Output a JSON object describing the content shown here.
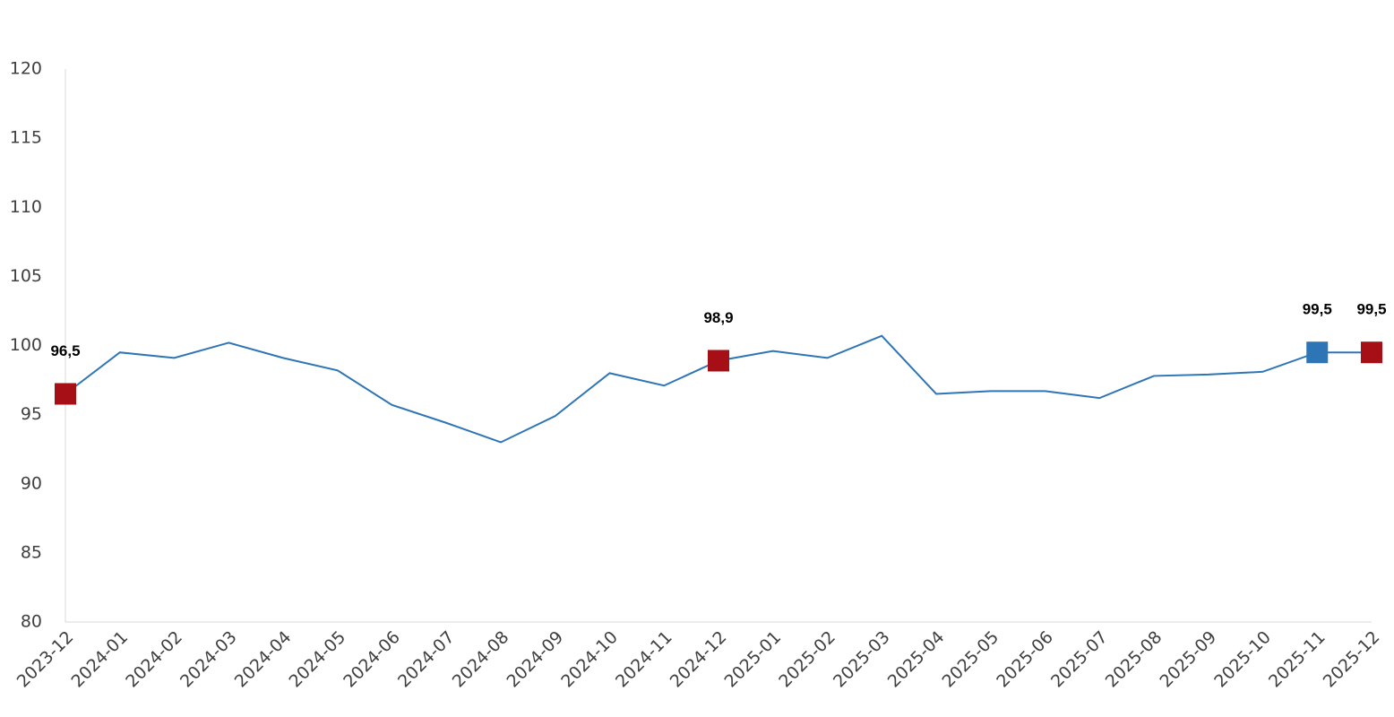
{
  "chart_data": {
    "type": "line",
    "categories": [
      "2023-12",
      "2024-01",
      "2024-02",
      "2024-03",
      "2024-04",
      "2024-05",
      "2024-06",
      "2024-07",
      "2024-08",
      "2024-09",
      "2024-10",
      "2024-11",
      "2024-12",
      "2025-01",
      "2025-02",
      "2025-03",
      "2025-04",
      "2025-05",
      "2025-06",
      "2025-07",
      "2025-08",
      "2025-09",
      "2025-10",
      "2025-11",
      "2025-12"
    ],
    "values": [
      96.5,
      99.5,
      99.1,
      100.2,
      99.1,
      98.2,
      95.7,
      94.4,
      93.0,
      94.9,
      98.0,
      97.1,
      98.9,
      99.6,
      99.1,
      100.7,
      96.5,
      96.7,
      96.7,
      96.2,
      97.8,
      97.9,
      98.1,
      99.5,
      99.5
    ],
    "value_labels": [
      "96,5",
      null,
      null,
      null,
      null,
      null,
      null,
      null,
      null,
      null,
      null,
      null,
      "98,9",
      null,
      null,
      null,
      null,
      null,
      null,
      null,
      null,
      null,
      null,
      "99,5",
      "99,5"
    ],
    "marker_colors": [
      "#a50f15",
      null,
      null,
      null,
      null,
      null,
      null,
      null,
      null,
      null,
      null,
      null,
      "#a50f15",
      null,
      null,
      null,
      null,
      null,
      null,
      null,
      null,
      null,
      null,
      "#2e75b6",
      "#a50f15"
    ],
    "color": "#2e75b6",
    "ylim": [
      80,
      120
    ],
    "yticks": [
      80,
      85,
      90,
      95,
      100,
      105,
      110,
      115,
      120
    ],
    "grid": false
  }
}
